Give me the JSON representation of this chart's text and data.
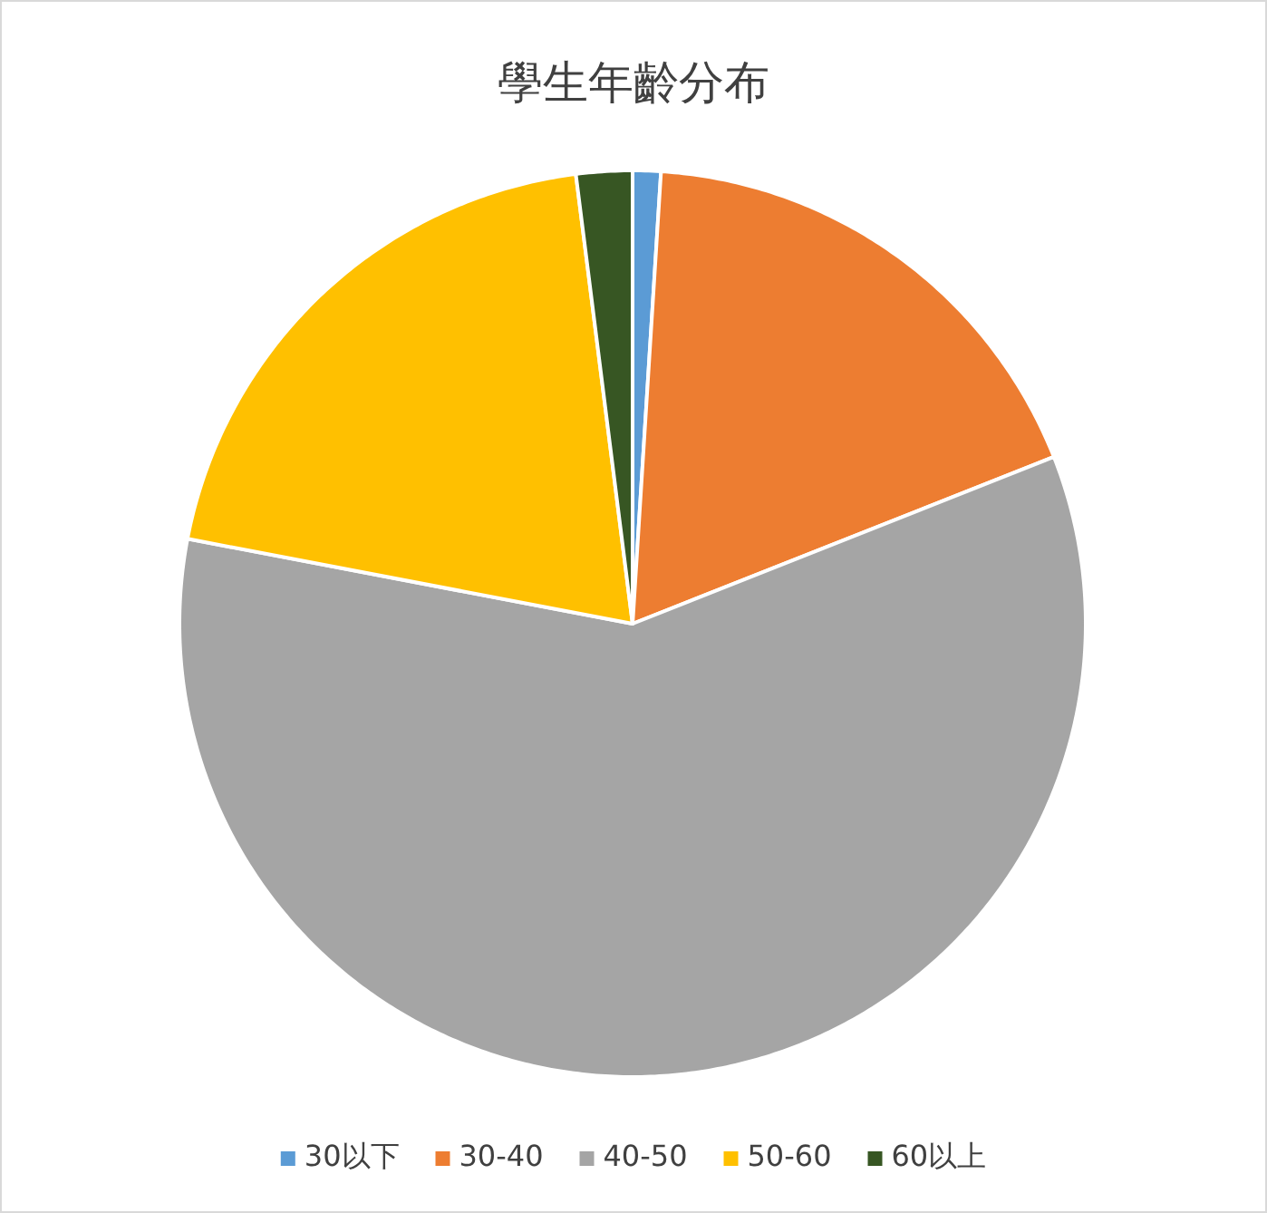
{
  "chart_data": {
    "type": "pie",
    "title": "學生年齡分布",
    "categories": [
      "30以下",
      "30-40",
      "40-50",
      "50-60",
      "60以上"
    ],
    "values": [
      1,
      18,
      59,
      20,
      2
    ],
    "colors": [
      "#5b9bd5",
      "#ed7d31",
      "#a5a5a5",
      "#ffc000",
      "#375623"
    ],
    "legend": "bottom"
  }
}
